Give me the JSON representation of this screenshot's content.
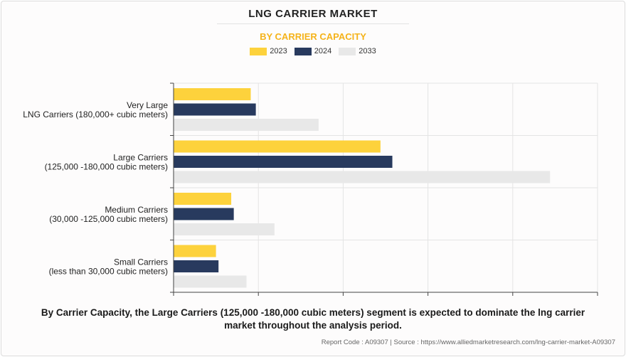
{
  "header": {
    "title": "LNG CARRIER MARKET",
    "subtitle": "BY CARRIER CAPACITY"
  },
  "chart_data": {
    "type": "bar",
    "orientation": "horizontal",
    "categories": [
      [
        "Very Large",
        "LNG Carriers (180,000+ cubic meters)"
      ],
      [
        "Large Carriers",
        "(125,000 -180,000 cubic meters)"
      ],
      [
        "Medium Carriers",
        "(30,000 -125,000 cubic meters)"
      ],
      [
        "Small Carriers",
        "(less than 30,000 cubic meters)"
      ]
    ],
    "series": [
      {
        "name": "2023",
        "color": "#fdd23c",
        "values": [
          9.1,
          24.4,
          6.8,
          5.0
        ]
      },
      {
        "name": "2024",
        "color": "#283a5e",
        "values": [
          9.7,
          25.8,
          7.1,
          5.3
        ]
      },
      {
        "name": "2033",
        "color": "#e8e8e8",
        "values": [
          17.1,
          44.4,
          11.9,
          8.6
        ]
      }
    ],
    "xlim": [
      0,
      50
    ],
    "grid": true,
    "legend_position": "top"
  },
  "footer": {
    "summary_line1": "By Carrier Capacity, the Large Carriers (125,000 -180,000 cubic meters) segment is expected to dominate the lng carrier",
    "summary_line2": "market throughout the analysis period.",
    "source": "Report Code : A09307  |  Source : https://www.alliedmarketresearch.com/lng-carrier-market-A09307"
  }
}
